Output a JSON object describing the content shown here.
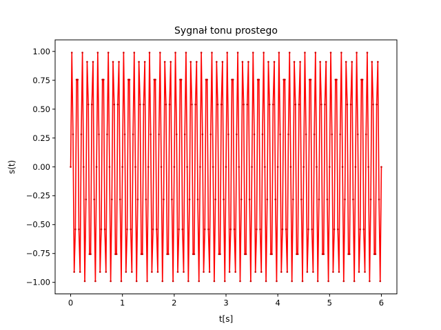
{
  "chart_data": {
    "type": "line",
    "title": "Sygnał tonu prostego",
    "xlabel": "t[s]",
    "ylabel": "s(t)",
    "xlim": [
      -0.3,
      6.3
    ],
    "ylim": [
      -1.1,
      1.1
    ],
    "x_ticks": [
      "0",
      "1",
      "2",
      "3",
      "4",
      "5",
      "6"
    ],
    "y_ticks": [
      "−1.00",
      "−0.75",
      "−0.50",
      "−0.25",
      "0.00",
      "0.25",
      "0.50",
      "0.75",
      "1.00"
    ],
    "grid": false,
    "legend": "none",
    "series": [
      {
        "function": "sin(2*pi*f*t)",
        "frequency_hz": 10,
        "amplitude": 1,
        "t_start": 0,
        "t_end": 6,
        "sample_rate_hz": 44,
        "line_color": "#ff0000",
        "marker_color": "#cc0000",
        "marker": "dot"
      }
    ]
  }
}
